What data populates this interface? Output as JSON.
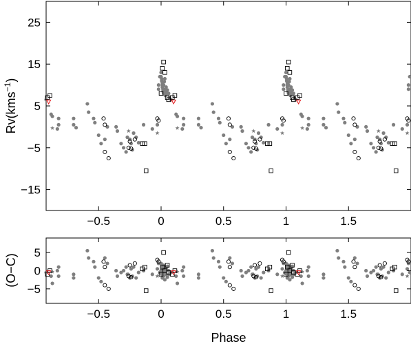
{
  "chart_data": [
    {
      "type": "scatter",
      "panel": "top",
      "ylabel": "Rv(kms",
      "ylabel_superscript": "−1",
      "ylabel_close": ")",
      "xlim": [
        -0.92,
        2.0
      ],
      "ylim": [
        -20,
        30
      ],
      "x_ticks": [
        -0.5,
        0,
        0.5,
        1,
        1.5
      ],
      "x_tick_labels": [
        "−0.5",
        "0",
        "0.5",
        "1",
        "1.5"
      ],
      "y_ticks": [
        -15,
        -5,
        5,
        15,
        25
      ],
      "y_tick_labels": [
        "−15",
        "−5",
        "5",
        "15",
        "25"
      ],
      "grid": false,
      "phase_repeat_offsets": [
        -1,
        0,
        1
      ],
      "series": [
        {
          "marker": "filled-circle",
          "color": "#7f7f7f",
          "points": [
            [
              0.0,
              13
            ],
            [
              0.0,
              12
            ],
            [
              0.005,
              11.5
            ],
            [
              0.005,
              11
            ],
            [
              0.01,
              10.5
            ],
            [
              0.01,
              10
            ],
            [
              0.01,
              9.5
            ],
            [
              0.015,
              9
            ],
            [
              0.015,
              8.5
            ],
            [
              0.02,
              8.5
            ],
            [
              0.02,
              8
            ],
            [
              0.025,
              7.8
            ],
            [
              0.025,
              8.5
            ],
            [
              0.03,
              8
            ],
            [
              0.03,
              8.2
            ],
            [
              0.035,
              9
            ],
            [
              0.035,
              7.5
            ],
            [
              0.04,
              8.5
            ],
            [
              0.04,
              9.5
            ],
            [
              0.05,
              8
            ],
            [
              0.05,
              8.8
            ],
            [
              0.06,
              8
            ],
            [
              0.065,
              7
            ],
            [
              0.08,
              6.5
            ],
            [
              0.02,
              10
            ],
            [
              0.025,
              10.8
            ],
            [
              0.03,
              11.5
            ],
            [
              0.12,
              3
            ],
            [
              0.13,
              2.5
            ],
            [
              0.17,
              -0.5
            ],
            [
              0.18,
              0.5
            ],
            [
              0.18,
              2
            ],
            [
              0.3,
              2
            ],
            [
              0.3,
              0.5
            ],
            [
              0.32,
              -0.2
            ],
            [
              0.41,
              5.5
            ],
            [
              0.42,
              3.5
            ],
            [
              0.46,
              2
            ],
            [
              0.47,
              1
            ],
            [
              0.5,
              -2
            ],
            [
              0.52,
              -4
            ],
            [
              0.55,
              -3
            ],
            [
              0.57,
              0
            ],
            [
              0.64,
              0
            ],
            [
              0.65,
              -1
            ],
            [
              0.68,
              -4
            ],
            [
              0.7,
              -5
            ],
            [
              0.72,
              -6
            ],
            [
              0.73,
              -2.5
            ],
            [
              0.75,
              -3
            ],
            [
              0.76,
              -4
            ],
            [
              0.77,
              -5.5
            ],
            [
              0.78,
              -1.5
            ],
            [
              0.8,
              -2.5
            ],
            [
              0.82,
              -3.8
            ],
            [
              0.86,
              0.5
            ],
            [
              0.93,
              -0.5
            ],
            [
              0.97,
              0.5
            ],
            [
              0.98,
              9
            ],
            [
              0.98,
              10
            ],
            [
              0.99,
              12
            ]
          ]
        },
        {
          "marker": "filled-star",
          "color": "#7f7f7f",
          "points": [
            [
              0.74,
              -1
            ],
            [
              0.97,
              -1.5
            ],
            [
              0.13,
              -0.3
            ]
          ]
        },
        {
          "marker": "open-circle",
          "color": "#000000",
          "points": [
            [
              0.54,
              2
            ],
            [
              0.55,
              0.5
            ],
            [
              0.55,
              -6
            ],
            [
              0.58,
              -7.5
            ],
            [
              0.74,
              -5
            ],
            [
              0.75,
              -3.5
            ],
            [
              0.76,
              -5.2
            ],
            [
              0.79,
              -3
            ],
            [
              0.97,
              2
            ],
            [
              0.98,
              1.5
            ]
          ]
        },
        {
          "marker": "open-square",
          "color": "#000000",
          "points": [
            [
              0.02,
              15.5
            ],
            [
              0.01,
              14
            ],
            [
              0.03,
              13
            ],
            [
              0.0,
              8
            ],
            [
              0.05,
              7
            ],
            [
              0.06,
              6.5
            ],
            [
              0.09,
              7
            ],
            [
              0.87,
              -4
            ],
            [
              0.85,
              -4
            ],
            [
              0.88,
              -10.5
            ],
            [
              0.11,
              7.5
            ]
          ]
        },
        {
          "marker": "open-triangle-down",
          "color": "#e31a1c",
          "points": [
            [
              0.1,
              6
            ]
          ]
        }
      ]
    },
    {
      "type": "scatter",
      "panel": "bottom",
      "xlabel": "Phase",
      "ylabel": "(O−C)",
      "xlim": [
        -0.92,
        2.0
      ],
      "ylim": [
        -9,
        9
      ],
      "x_ticks": [
        -0.5,
        0,
        0.5,
        1,
        1.5
      ],
      "x_tick_labels": [
        "−0.5",
        "0",
        "0.5",
        "1",
        "1.5"
      ],
      "y_ticks": [
        -5,
        0,
        5
      ],
      "y_tick_labels": [
        "−5",
        "0",
        "5"
      ],
      "grid": false,
      "phase_repeat_offsets": [
        -1,
        0,
        1
      ],
      "series": [
        {
          "marker": "filled-circle",
          "color": "#7f7f7f",
          "points": [
            [
              0.0,
              2
            ],
            [
              0.0,
              0
            ],
            [
              0.005,
              -1
            ],
            [
              0.01,
              1
            ],
            [
              0.01,
              -2
            ],
            [
              0.015,
              0.5
            ],
            [
              0.02,
              -1.5
            ],
            [
              0.02,
              1.5
            ],
            [
              0.025,
              -0.5
            ],
            [
              0.03,
              0
            ],
            [
              0.03,
              -2.5
            ],
            [
              0.035,
              1
            ],
            [
              0.04,
              -1
            ],
            [
              0.04,
              0.5
            ],
            [
              0.05,
              -1.8
            ],
            [
              0.05,
              1.2
            ],
            [
              0.06,
              0
            ],
            [
              0.065,
              -1
            ],
            [
              0.08,
              -0.5
            ],
            [
              0.12,
              -1.5
            ],
            [
              0.13,
              -3.5
            ],
            [
              0.17,
              0
            ],
            [
              0.18,
              1
            ],
            [
              0.18,
              -1.5
            ],
            [
              0.3,
              -2
            ],
            [
              0.3,
              -1
            ],
            [
              0.41,
              5.5
            ],
            [
              0.42,
              3.5
            ],
            [
              0.46,
              2.5
            ],
            [
              0.47,
              1
            ],
            [
              0.5,
              -2
            ],
            [
              0.52,
              -3
            ],
            [
              0.55,
              3.5
            ],
            [
              0.57,
              2
            ],
            [
              0.64,
              0
            ],
            [
              0.65,
              -1.5
            ],
            [
              0.68,
              -0.5
            ],
            [
              0.7,
              0
            ],
            [
              0.72,
              1
            ],
            [
              0.73,
              -1
            ],
            [
              0.75,
              -2
            ],
            [
              0.76,
              0.5
            ],
            [
              0.77,
              -1.5
            ],
            [
              0.78,
              1
            ],
            [
              0.8,
              -2
            ],
            [
              0.82,
              -0.5
            ],
            [
              0.86,
              0
            ],
            [
              0.93,
              -1
            ],
            [
              0.97,
              0.5
            ],
            [
              0.98,
              2
            ],
            [
              0.99,
              -0.5
            ]
          ]
        },
        {
          "marker": "filled-star",
          "color": "#7f7f7f",
          "points": [
            [
              0.74,
              -1
            ],
            [
              0.97,
              -1.5
            ],
            [
              0.13,
              -0.3
            ]
          ]
        },
        {
          "marker": "open-circle",
          "color": "#000000",
          "points": [
            [
              0.54,
              2.5
            ],
            [
              0.55,
              1
            ],
            [
              0.55,
              -4
            ],
            [
              0.58,
              -5
            ],
            [
              0.74,
              -1.5
            ],
            [
              0.75,
              1.5
            ],
            [
              0.76,
              -1.8
            ],
            [
              0.79,
              2
            ],
            [
              0.97,
              3
            ],
            [
              0.98,
              2.5
            ]
          ]
        },
        {
          "marker": "open-square",
          "color": "#000000",
          "points": [
            [
              0.02,
              5
            ],
            [
              0.01,
              1
            ],
            [
              0.03,
              0
            ],
            [
              0.0,
              -1
            ],
            [
              0.05,
              1.5
            ],
            [
              0.06,
              -0.5
            ],
            [
              0.09,
              -1
            ],
            [
              0.87,
              1
            ],
            [
              0.85,
              0.5
            ],
            [
              0.88,
              -5.5
            ],
            [
              0.11,
              0
            ]
          ]
        },
        {
          "marker": "open-triangle-down",
          "color": "#e31a1c",
          "points": [
            [
              0.1,
              -0.5
            ]
          ]
        }
      ]
    }
  ]
}
